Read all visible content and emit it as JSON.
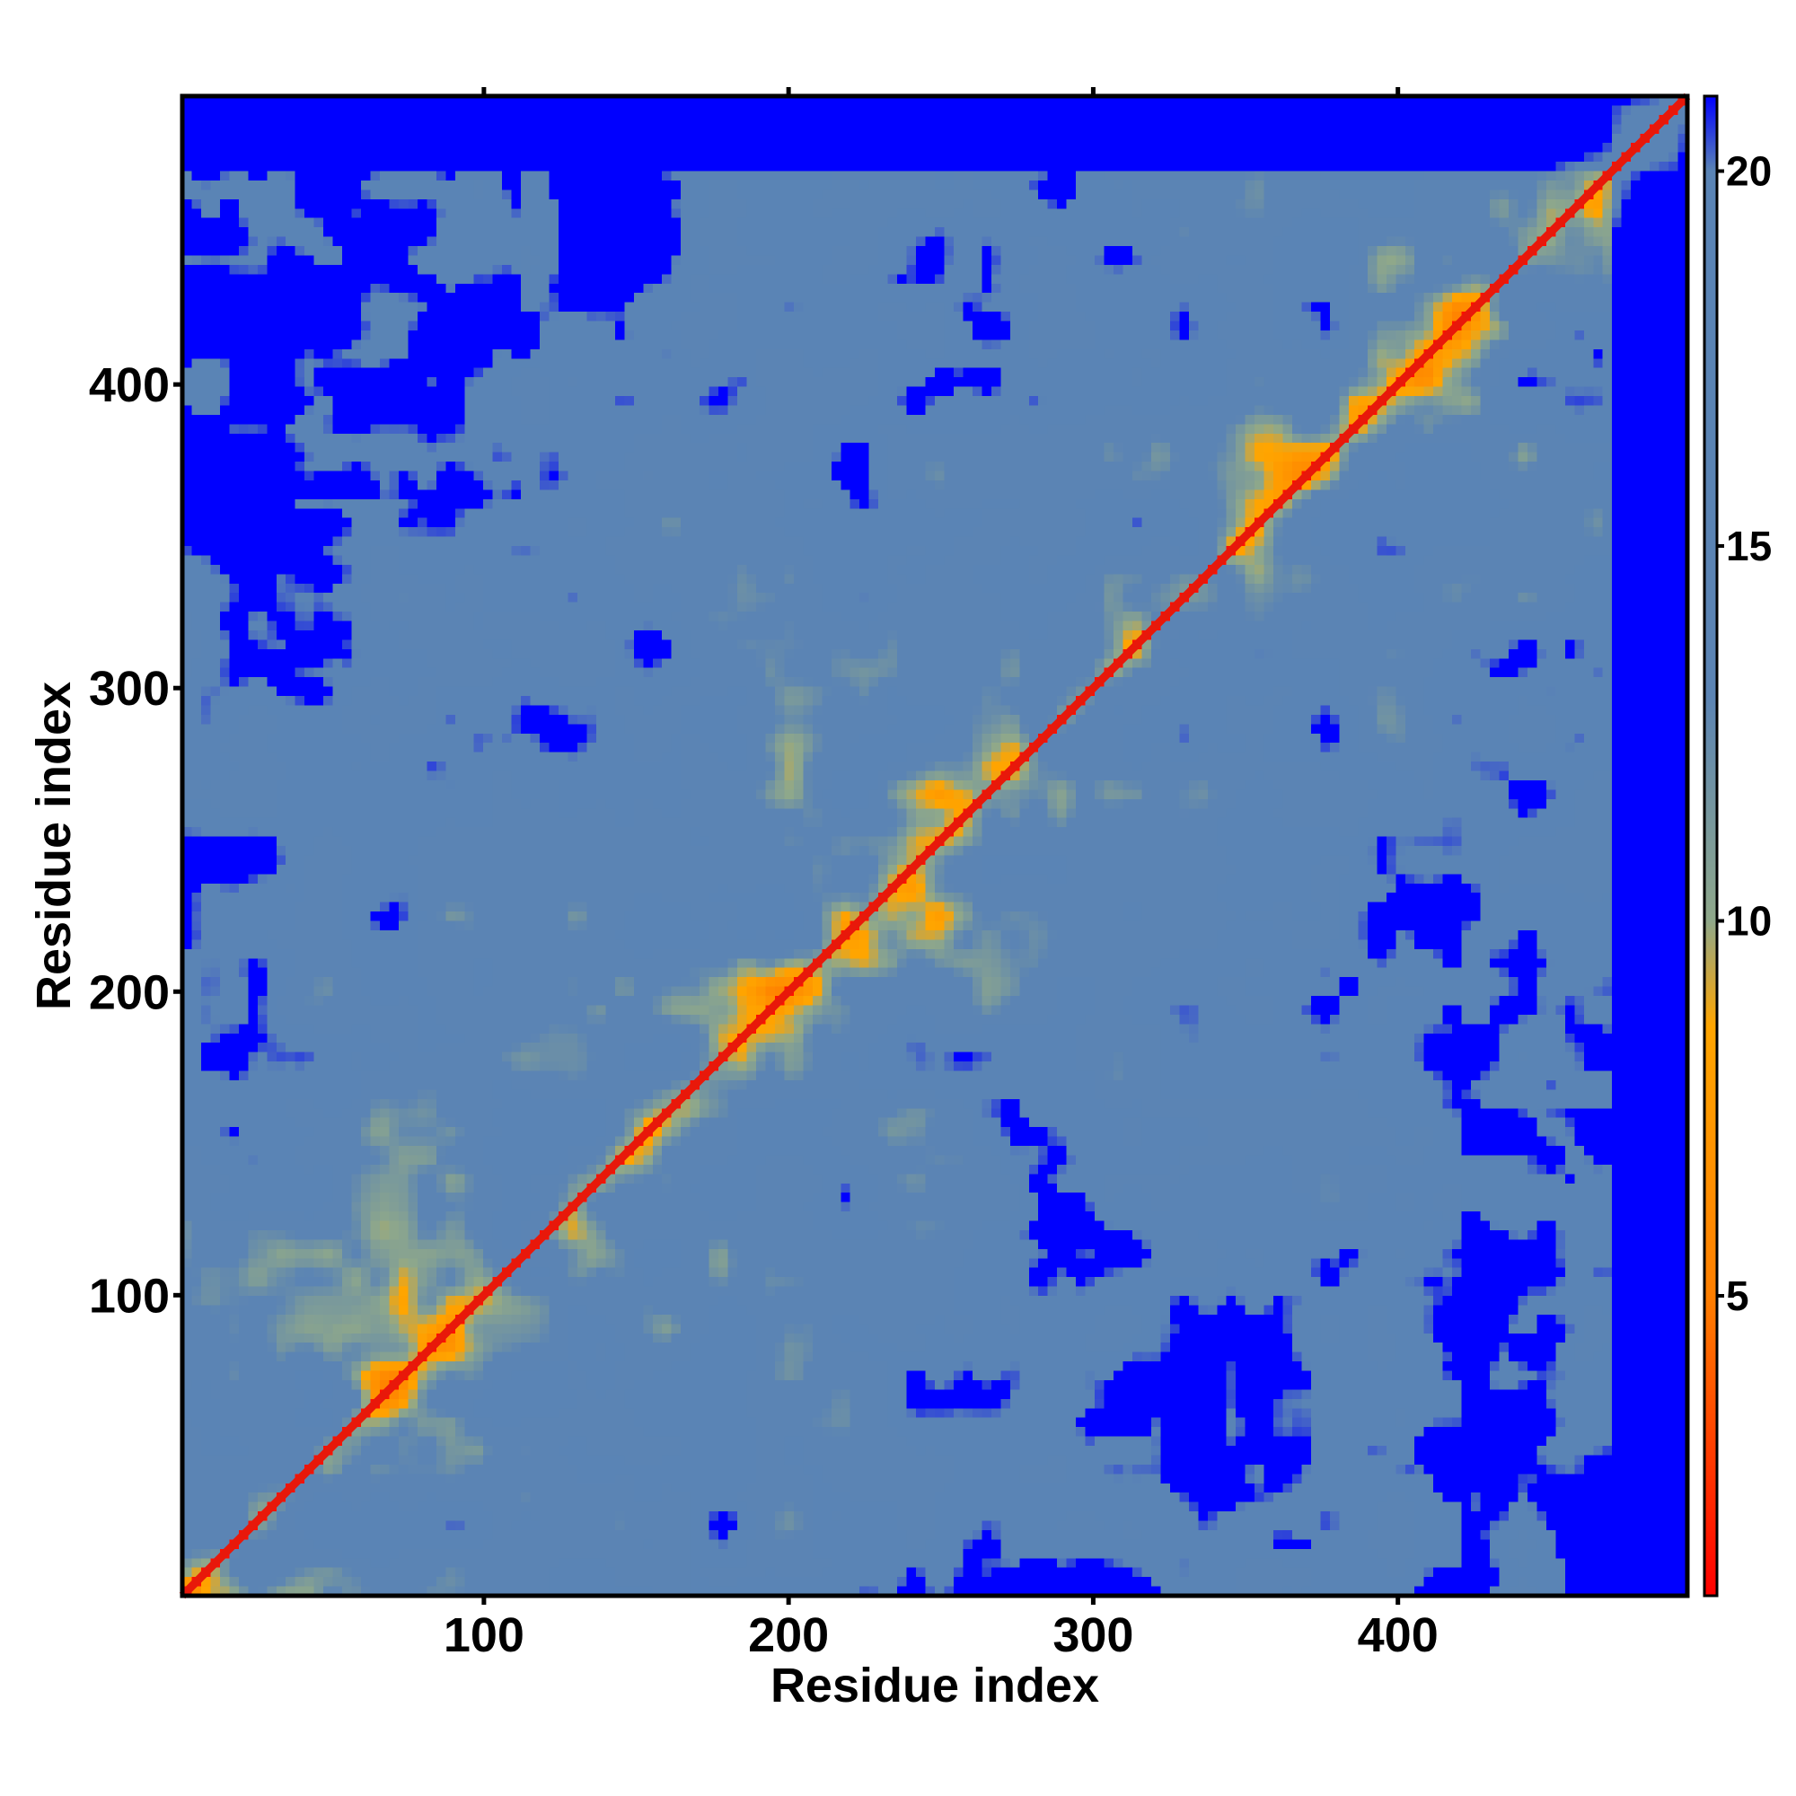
{
  "chart_data": {
    "type": "heatmap",
    "title": "",
    "xlabel": "Residue index",
    "ylabel": "Residue index",
    "xlim": [
      1,
      495
    ],
    "ylim": [
      1,
      495
    ],
    "x_ticks": [
      100,
      200,
      300,
      400
    ],
    "y_ticks": [
      100,
      200,
      300,
      400
    ],
    "colorbar": {
      "range": [
        1,
        21
      ],
      "ticks": [
        5,
        10,
        15,
        20
      ],
      "colors": [
        "#ff0000",
        "#ff7f00",
        "#ffa500",
        "#8fa88a",
        "#5b84b4",
        "#5a84b5",
        "#0000ff"
      ],
      "color_stops": [
        0,
        0.2,
        0.38,
        0.45,
        0.6,
        0.95,
        1.0
      ]
    },
    "palette": {
      "diagonal": "#e8180a",
      "near_contact": "#ff8c00",
      "mid_contact": "#b8c07a",
      "background_distance": "#5a84b5",
      "far_distance": "#0000ff"
    },
    "description_of_structure": {
      "diagonal_band": "distance near 0 along residue i = j",
      "saturated_region": "values at or above 21 shown as solid blue, dominant in upper-left and lower-right corners"
    }
  }
}
